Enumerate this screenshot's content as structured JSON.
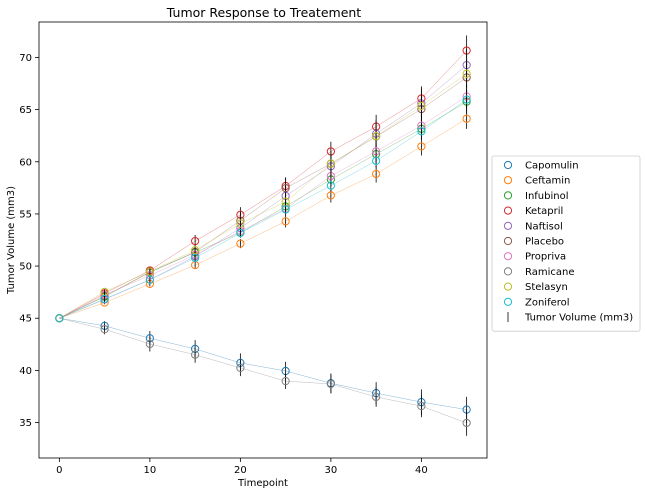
{
  "chart_data": {
    "type": "scatter",
    "title": "Tumor Response to Treatement",
    "xlabel": "Timepoint",
    "ylabel": "Tumor Volume (mm3)",
    "xlim": [
      -2.25,
      47.25
    ],
    "ylim": [
      31.6,
      73.4
    ],
    "x_ticks": [
      0,
      10,
      20,
      30,
      40
    ],
    "y_ticks": [
      35,
      40,
      45,
      50,
      55,
      60,
      65,
      70
    ],
    "grid": false,
    "legend_position": "center-right-outside",
    "errorbar_label": "Tumor Volume (mm3)",
    "errorbar_color": "#000000",
    "x": [
      0,
      5,
      10,
      15,
      20,
      25,
      30,
      35,
      40,
      45
    ],
    "series": [
      {
        "name": "Capomulin",
        "color": "#1f77b4",
        "values": [
          45.0,
          44.27,
          43.08,
          42.06,
          40.72,
          39.94,
          38.77,
          37.82,
          36.96,
          36.24
        ],
        "err": [
          0,
          0.45,
          0.7,
          0.84,
          0.91,
          0.88,
          0.93,
          1.05,
          1.22,
          1.22
        ]
      },
      {
        "name": "Ceftamin",
        "color": "#ff7f0e",
        "values": [
          45.0,
          46.5,
          48.29,
          50.09,
          52.16,
          54.29,
          56.77,
          58.83,
          61.47,
          64.13
        ],
        "err": [
          0,
          0.16,
          0.24,
          0.33,
          0.44,
          0.58,
          0.68,
          0.82,
          0.87,
          0.98
        ]
      },
      {
        "name": "Infubinol",
        "color": "#2ca02c",
        "values": [
          45.0,
          47.06,
          49.4,
          51.3,
          53.2,
          55.72,
          58.3,
          60.74,
          63.16,
          65.76
        ],
        "err": [
          0,
          0.24,
          0.28,
          0.36,
          0.44,
          0.55,
          0.63,
          0.98,
          1.06,
          1.14
        ]
      },
      {
        "name": "Ketapril",
        "color": "#d62728",
        "values": [
          45.0,
          47.39,
          49.58,
          52.4,
          54.92,
          57.68,
          60.99,
          63.37,
          66.07,
          70.66
        ],
        "err": [
          0,
          0.26,
          0.36,
          0.58,
          0.73,
          0.76,
          0.93,
          1.13,
          1.16,
          1.45
        ]
      },
      {
        "name": "Naftisol",
        "color": "#9467bd",
        "values": [
          45.0,
          46.8,
          48.69,
          50.93,
          53.64,
          56.73,
          59.56,
          62.69,
          65.6,
          69.27
        ],
        "err": [
          0,
          0.2,
          0.37,
          0.53,
          0.66,
          0.92,
          1.06,
          1.32,
          1.47,
          1.57
        ]
      },
      {
        "name": "Placebo",
        "color": "#8c564b",
        "values": [
          45.0,
          47.13,
          49.42,
          51.36,
          54.36,
          57.48,
          59.81,
          62.42,
          65.05,
          68.08
        ],
        "err": [
          0,
          0.22,
          0.4,
          0.61,
          0.84,
          1.03,
          1.22,
          1.29,
          1.37,
          1.35
        ]
      },
      {
        "name": "Propriva",
        "color": "#e377c2",
        "values": [
          45.0,
          47.25,
          49.1,
          51.07,
          53.35,
          55.5,
          58.63,
          61.0,
          63.47,
          66.26
        ],
        "err": [
          0,
          0.23,
          0.38,
          0.47,
          0.56,
          0.66,
          0.8,
          0.95,
          1.08,
          1.13
        ]
      },
      {
        "name": "Ramicane",
        "color": "#7f7f7f",
        "values": [
          45.0,
          43.94,
          42.53,
          41.5,
          40.24,
          38.97,
          38.7,
          37.45,
          36.57,
          34.96
        ],
        "err": [
          0,
          0.48,
          0.72,
          0.77,
          0.79,
          0.75,
          0.91,
          0.94,
          1.06,
          1.23
        ]
      },
      {
        "name": "Stelasyn",
        "color": "#bcbd22",
        "values": [
          45.0,
          47.53,
          49.46,
          51.53,
          54.07,
          56.17,
          59.83,
          62.44,
          65.36,
          68.44
        ],
        "err": [
          0,
          0.24,
          0.43,
          0.49,
          0.62,
          0.74,
          0.9,
          1.0,
          1.18,
          1.35
        ]
      },
      {
        "name": "Zoniferol",
        "color": "#17becf",
        "values": [
          45.0,
          46.85,
          48.69,
          50.78,
          53.17,
          55.43,
          57.71,
          60.09,
          62.92,
          65.96
        ],
        "err": [
          0,
          0.19,
          0.26,
          0.36,
          0.44,
          0.49,
          0.58,
          0.65,
          0.78,
          0.88
        ]
      }
    ]
  }
}
